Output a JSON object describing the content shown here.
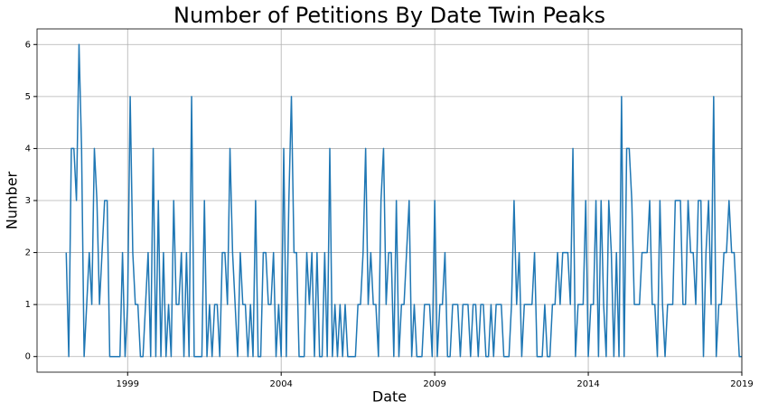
{
  "chart_data": {
    "type": "line",
    "title": "Number of Petitions By Date Twin Peaks",
    "x_label": "Date",
    "y_label": "Number",
    "x": [
      1997.0,
      1997.083,
      1997.167,
      1997.25,
      1997.333,
      1997.417,
      1997.5,
      1997.583,
      1997.667,
      1997.75,
      1997.833,
      1997.917,
      1998.0,
      1998.083,
      1998.167,
      1998.25,
      1998.333,
      1998.417,
      1998.5,
      1998.583,
      1998.667,
      1998.75,
      1998.833,
      1998.917,
      1999.0,
      1999.083,
      1999.167,
      1999.25,
      1999.333,
      1999.417,
      1999.5,
      1999.583,
      1999.667,
      1999.75,
      1999.833,
      1999.917,
      2000.0,
      2000.083,
      2000.167,
      2000.25,
      2000.333,
      2000.417,
      2000.5,
      2000.583,
      2000.667,
      2000.75,
      2000.833,
      2000.917,
      2001.0,
      2001.083,
      2001.167,
      2001.25,
      2001.333,
      2001.417,
      2001.5,
      2001.583,
      2001.667,
      2001.75,
      2001.833,
      2001.917,
      2002.0,
      2002.083,
      2002.167,
      2002.25,
      2002.333,
      2002.417,
      2002.5,
      2002.583,
      2002.667,
      2002.75,
      2002.833,
      2002.917,
      2003.0,
      2003.083,
      2003.167,
      2003.25,
      2003.333,
      2003.417,
      2003.5,
      2003.583,
      2003.667,
      2003.75,
      2003.833,
      2003.917,
      2004.0,
      2004.083,
      2004.167,
      2004.25,
      2004.333,
      2004.417,
      2004.5,
      2004.583,
      2004.667,
      2004.75,
      2004.833,
      2004.917,
      2005.0,
      2005.083,
      2005.167,
      2005.25,
      2005.333,
      2005.417,
      2005.5,
      2005.583,
      2005.667,
      2005.75,
      2005.833,
      2005.917,
      2006.0,
      2006.083,
      2006.167,
      2006.25,
      2006.333,
      2006.417,
      2006.5,
      2006.583,
      2006.667,
      2006.75,
      2006.833,
      2006.917,
      2007.0,
      2007.083,
      2007.167,
      2007.25,
      2007.333,
      2007.417,
      2007.5,
      2007.583,
      2007.667,
      2007.75,
      2007.833,
      2007.917,
      2008.0,
      2008.083,
      2008.167,
      2008.25,
      2008.333,
      2008.417,
      2008.5,
      2008.583,
      2008.667,
      2008.75,
      2008.833,
      2008.917,
      2009.0,
      2009.083,
      2009.167,
      2009.25,
      2009.333,
      2009.417,
      2009.5,
      2009.583,
      2009.667,
      2009.75,
      2009.833,
      2009.917,
      2010.0,
      2010.083,
      2010.167,
      2010.25,
      2010.333,
      2010.417,
      2010.5,
      2010.583,
      2010.667,
      2010.75,
      2010.833,
      2010.917,
      2011.0,
      2011.083,
      2011.167,
      2011.25,
      2011.333,
      2011.417,
      2011.5,
      2011.583,
      2011.667,
      2011.75,
      2011.833,
      2011.917,
      2012.0,
      2012.083,
      2012.167,
      2012.25,
      2012.333,
      2012.417,
      2012.5,
      2012.583,
      2012.667,
      2012.75,
      2012.833,
      2012.917,
      2013.0,
      2013.083,
      2013.167,
      2013.25,
      2013.333,
      2013.417,
      2013.5,
      2013.583,
      2013.667,
      2013.75,
      2013.833,
      2013.917,
      2014.0,
      2014.083,
      2014.167,
      2014.25,
      2014.333,
      2014.417,
      2014.5,
      2014.583,
      2014.667,
      2014.75,
      2014.833,
      2014.917,
      2015.0,
      2015.083,
      2015.167,
      2015.25,
      2015.333,
      2015.417,
      2015.5,
      2015.583,
      2015.667,
      2015.75,
      2015.833,
      2015.917,
      2016.0,
      2016.083,
      2016.167,
      2016.25,
      2016.333,
      2016.417,
      2016.5,
      2016.583,
      2016.667,
      2016.75,
      2016.833,
      2016.917,
      2017.0,
      2017.083,
      2017.167,
      2017.25,
      2017.333,
      2017.417,
      2017.5,
      2017.583,
      2017.667,
      2017.75,
      2017.833,
      2017.917,
      2018.0,
      2018.083,
      2018.167,
      2018.25,
      2018.333,
      2018.417,
      2018.5,
      2018.583,
      2018.667,
      2018.75,
      2018.833,
      2018.917,
      2019.0
    ],
    "series": [
      {
        "color": "#1f77b4",
        "values": [
          2,
          0,
          4,
          4,
          3,
          6,
          4,
          0,
          1,
          2,
          1,
          4,
          3,
          1,
          2,
          3,
          3,
          0,
          0,
          0,
          0,
          0,
          2,
          0,
          1,
          5,
          2,
          1,
          1,
          0,
          0,
          1,
          2,
          0,
          4,
          0,
          3,
          0,
          2,
          0,
          1,
          0,
          3,
          1,
          1,
          2,
          0,
          2,
          0,
          5,
          0,
          0,
          0,
          0,
          3,
          0,
          1,
          0,
          1,
          1,
          0,
          2,
          2,
          1,
          4,
          2,
          1,
          0,
          2,
          1,
          1,
          0,
          1,
          0,
          3,
          0,
          0,
          2,
          2,
          1,
          1,
          2,
          0,
          1,
          0,
          4,
          0,
          3,
          5,
          2,
          2,
          0,
          0,
          0,
          2,
          1,
          2,
          0,
          2,
          0,
          0,
          2,
          0,
          4,
          0,
          1,
          0,
          1,
          0,
          1,
          0,
          0,
          0,
          0,
          1,
          1,
          2,
          4,
          1,
          2,
          1,
          1,
          0,
          3,
          4,
          1,
          2,
          2,
          0,
          3,
          0,
          1,
          1,
          2,
          3,
          0,
          1,
          0,
          0,
          0,
          1,
          1,
          1,
          0,
          3,
          0,
          1,
          1,
          2,
          0,
          0,
          1,
          1,
          1,
          0,
          1,
          1,
          1,
          0,
          1,
          1,
          0,
          1,
          1,
          0,
          0,
          1,
          0,
          1,
          1,
          1,
          0,
          0,
          0,
          1,
          3,
          1,
          2,
          0,
          1,
          1,
          1,
          1,
          2,
          0,
          0,
          0,
          1,
          0,
          0,
          1,
          1,
          2,
          1,
          2,
          2,
          2,
          1,
          4,
          0,
          1,
          1,
          1,
          3,
          0,
          1,
          1,
          3,
          0,
          3,
          1,
          0,
          3,
          2,
          0,
          2,
          0,
          5,
          0,
          4,
          4,
          3,
          1,
          1,
          1,
          2,
          2,
          2,
          3,
          1,
          1,
          0,
          3,
          1,
          0,
          1,
          1,
          1,
          3,
          3,
          3,
          1,
          1,
          3,
          2,
          2,
          1,
          3,
          3,
          0,
          2,
          3,
          1,
          5,
          0,
          1,
          1,
          2,
          2,
          3,
          2,
          2,
          1,
          0,
          0
        ]
      }
    ],
    "xlim": [
      1996.05,
      2019
    ],
    "xticks": [
      1999,
      2004,
      2009,
      2014,
      2019
    ],
    "ylim": [
      -0.3,
      6.3
    ],
    "yticks": [
      0,
      1,
      2,
      3,
      4,
      5,
      6
    ],
    "grid": true
  }
}
